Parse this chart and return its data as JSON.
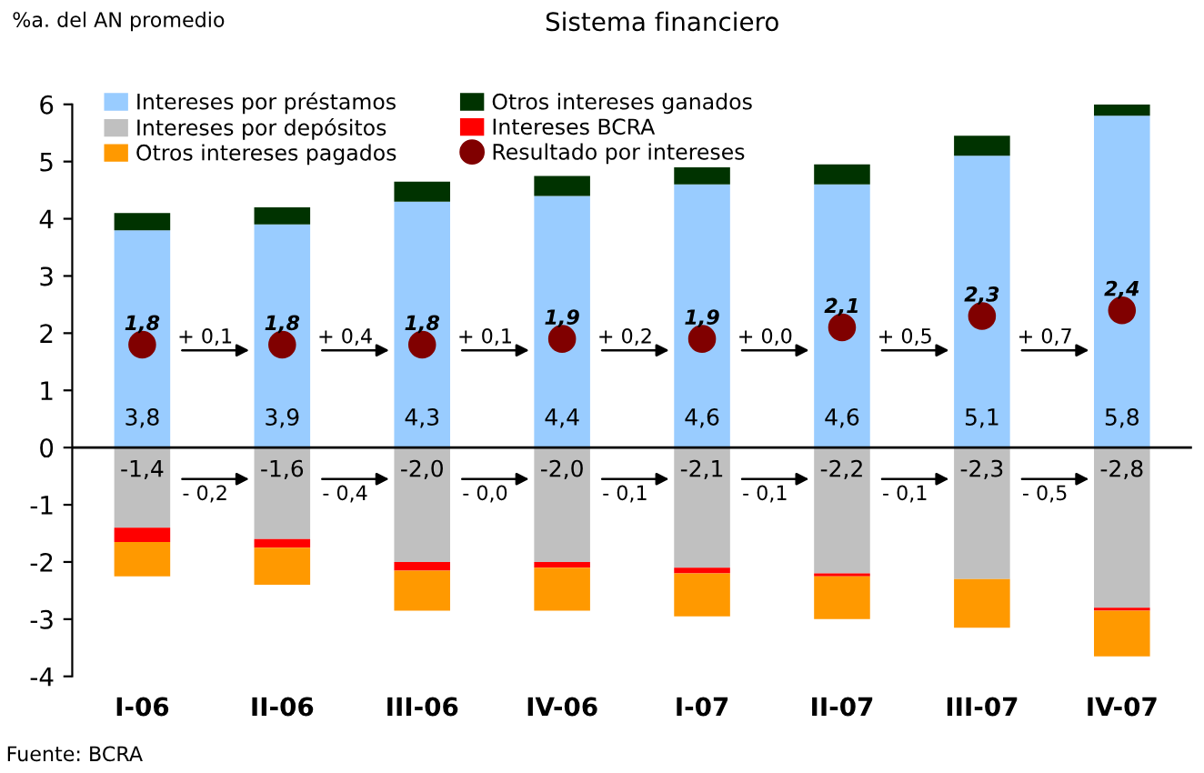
{
  "chart_data": {
    "type": "bar",
    "stacked": true,
    "title": "Sistema financiero",
    "ylabel": "%a. del AN promedio",
    "categories": [
      "I-06",
      "II-06",
      "III-06",
      "IV-06",
      "I-07",
      "II-07",
      "III-07",
      "IV-07"
    ],
    "series": [
      {
        "name": "Intereses por préstamos",
        "color": "#99ccff",
        "values": [
          3.8,
          3.9,
          4.3,
          4.4,
          4.6,
          4.6,
          5.1,
          5.8
        ],
        "value_labels": [
          "3,8",
          "3,9",
          "4,3",
          "4,4",
          "4,6",
          "4,6",
          "5,1",
          "5,8"
        ]
      },
      {
        "name": "Otros intereses ganados",
        "color": "#003300",
        "values": [
          0.3,
          0.3,
          0.35,
          0.35,
          0.3,
          0.35,
          0.35,
          0.2
        ]
      },
      {
        "name": "Intereses por depósitos",
        "color": "#c0c0c0",
        "values": [
          -1.4,
          -1.6,
          -2.0,
          -2.0,
          -2.1,
          -2.2,
          -2.3,
          -2.8
        ],
        "value_labels": [
          "-1,4",
          "-1,6",
          "-2,0",
          "-2,0",
          "-2,1",
          "-2,2",
          "-2,3",
          "-2,8"
        ]
      },
      {
        "name": "Intereses BCRA",
        "color": "#ff0000",
        "values": [
          -0.25,
          -0.15,
          -0.15,
          -0.1,
          -0.1,
          -0.05,
          0,
          -0.05
        ]
      },
      {
        "name": "Otros intereses pagados",
        "color": "#ff9900",
        "values": [
          -0.6,
          -0.65,
          -0.7,
          -0.75,
          -0.75,
          -0.75,
          -0.85,
          -0.8
        ]
      },
      {
        "name": "Resultado por intereses",
        "type": "scatter",
        "color": "#800000",
        "values": [
          1.8,
          1.8,
          1.8,
          1.9,
          1.9,
          2.1,
          2.3,
          2.4
        ],
        "value_labels": [
          "1,8",
          "1,8",
          "1,8",
          "1,9",
          "1,9",
          "2,1",
          "2,3",
          "2,4"
        ]
      }
    ],
    "ylim": [
      -4,
      6
    ],
    "yticks": [
      -4,
      -3,
      -2,
      -1,
      0,
      1,
      2,
      3,
      4,
      5,
      6
    ],
    "grid": false,
    "legend": "top left",
    "marker": "circle",
    "ref_lines": [
      {
        "axis": "y",
        "value": 0,
        "color": "#000000"
      }
    ],
    "annotations": [
      "+ 0,1",
      "+ 0,4",
      "+ 0,1",
      "+ 0,2",
      "+ 0,0",
      "+ 0,5",
      "+ 0,7",
      "- 0,2",
      "- 0,4",
      "- 0,0",
      "- 0,1",
      "- 0,1",
      "- 0,1",
      "- 0,5",
      "Fuente: BCRA"
    ]
  }
}
